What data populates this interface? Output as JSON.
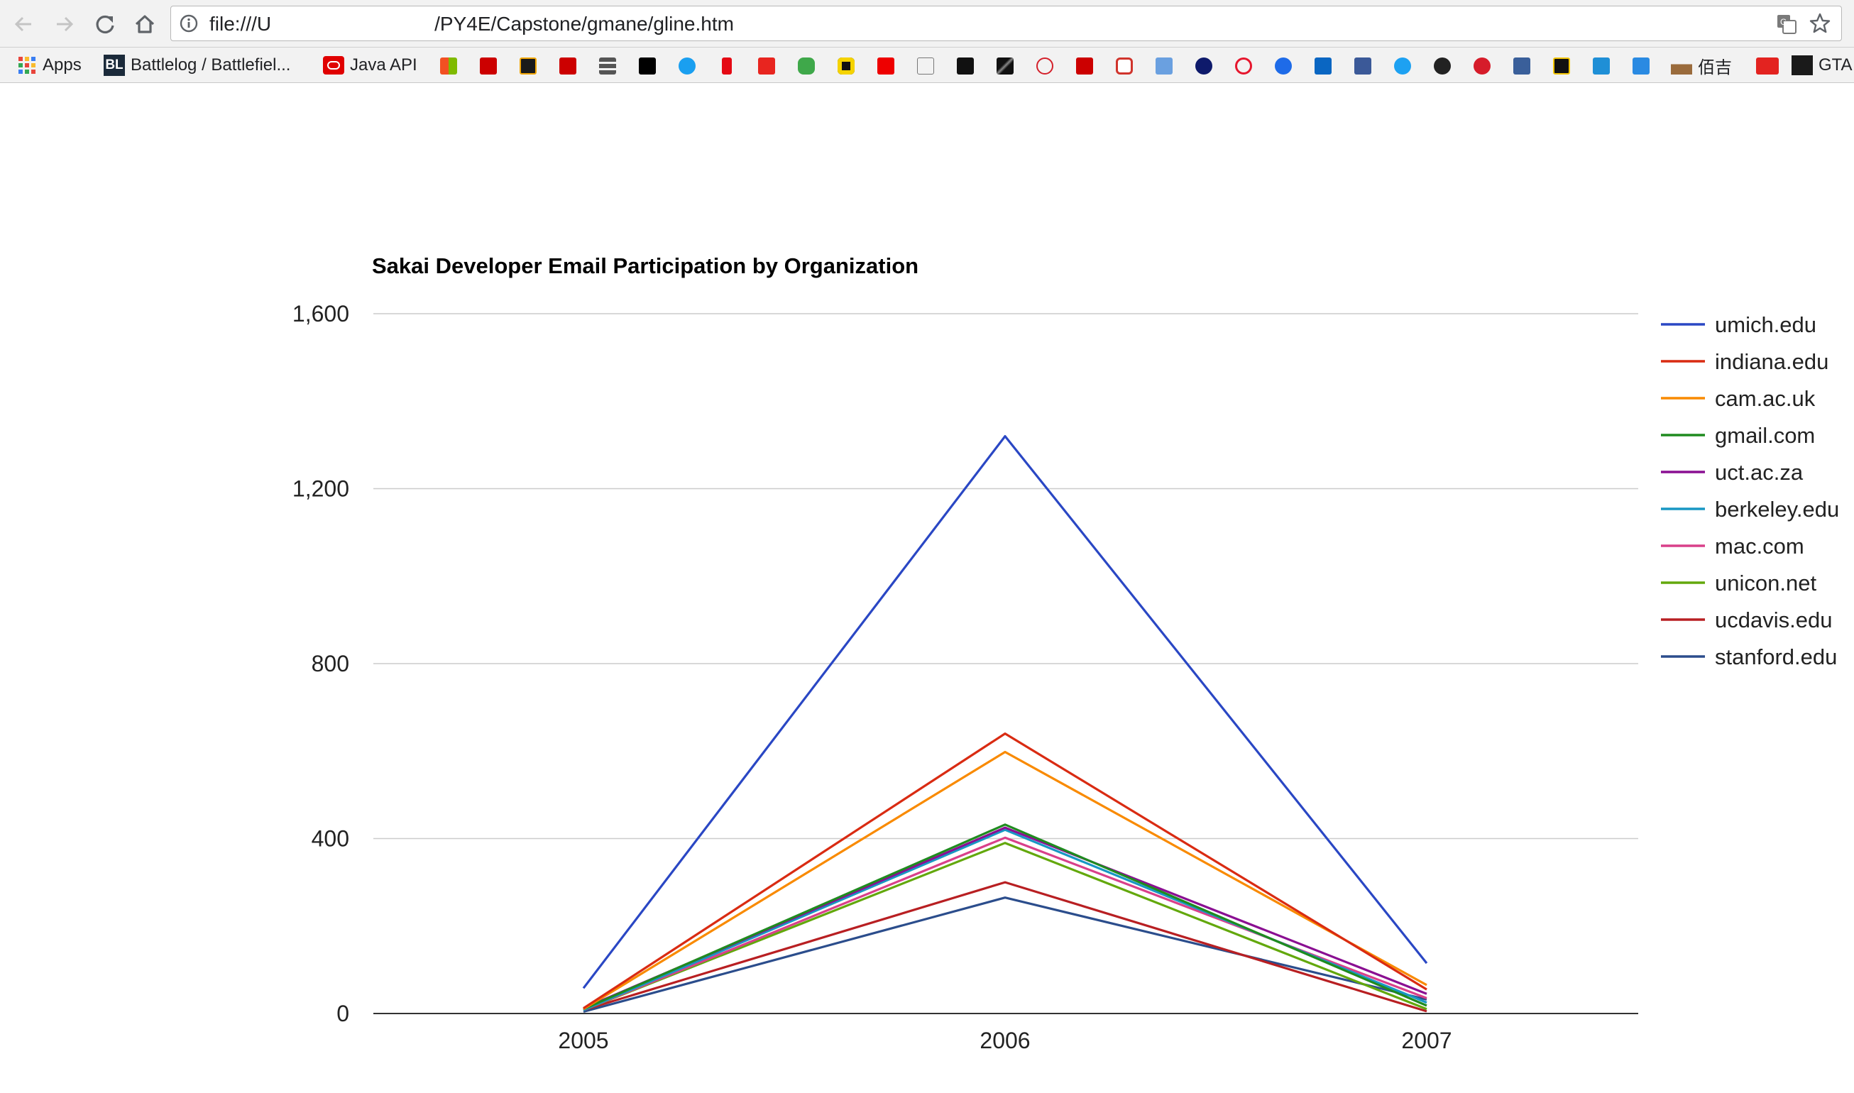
{
  "browser": {
    "url": "file:///U                                    /PY4E/Capstone/gmane/gline.htm",
    "url_prefix": "file:///U",
    "url_suffix": "/PY4E/Capstone/gmane/gline.htm"
  },
  "bookmarks": {
    "apps_label": "Apps",
    "battlelog_label": "Battlelog / Battlefiel...",
    "java_label": "Java API",
    "chinese_label": "佰吉",
    "gta_label": "GTA"
  },
  "chart_data": {
    "type": "line",
    "title": "Sakai Developer Email Participation by Organization",
    "xlabel": "",
    "ylabel": "",
    "x": [
      "2005",
      "2006",
      "2007"
    ],
    "ylim": [
      0,
      1600
    ],
    "yticks": [
      "0",
      "400",
      "800",
      "1,200",
      "1,600"
    ],
    "grid": true,
    "legend_position": "right",
    "series": [
      {
        "name": "umich.edu",
        "color": "#2a47c4",
        "values": [
          58,
          1320,
          115
        ]
      },
      {
        "name": "indiana.edu",
        "color": "#d92b12",
        "values": [
          12,
          640,
          55
        ]
      },
      {
        "name": "cam.ac.uk",
        "color": "#f98a00",
        "values": [
          10,
          598,
          65
        ]
      },
      {
        "name": "gmail.com",
        "color": "#1f8b1f",
        "values": [
          10,
          432,
          18
        ]
      },
      {
        "name": "uct.ac.za",
        "color": "#8a0f92",
        "values": [
          12,
          425,
          45
        ]
      },
      {
        "name": "berkeley.edu",
        "color": "#1897c4",
        "values": [
          8,
          420,
          25
        ]
      },
      {
        "name": "mac.com",
        "color": "#d9408a",
        "values": [
          8,
          402,
          35
        ]
      },
      {
        "name": "unicon.net",
        "color": "#63a80c",
        "values": [
          8,
          390,
          10
        ]
      },
      {
        "name": "ucdavis.edu",
        "color": "#b81f22",
        "values": [
          8,
          300,
          5
        ]
      },
      {
        "name": "stanford.edu",
        "color": "#2b4d8c",
        "values": [
          4,
          265,
          32
        ]
      }
    ]
  }
}
